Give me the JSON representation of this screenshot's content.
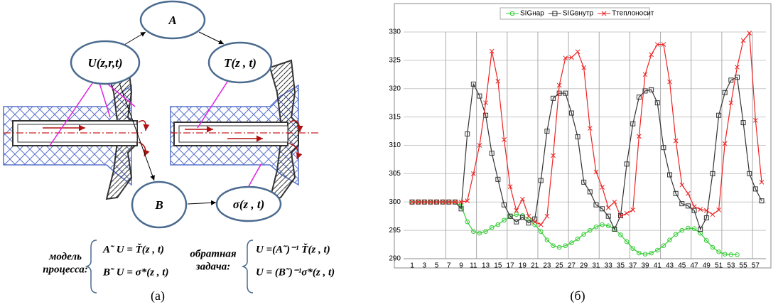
{
  "diagram": {
    "nodes": [
      {
        "label": "A"
      },
      {
        "label": "U(z,r,t)"
      },
      {
        "label": "T(z , t)"
      },
      {
        "label": "B"
      },
      {
        "label": "σ(z , t)"
      }
    ],
    "model_label": [
      "модель",
      "процесса:"
    ],
    "model_formulas": [
      "A˜ U = Ť(z , t)",
      "B˜ U = σ*(z , t)"
    ],
    "inverse_label": [
      "обратная",
      "задача:"
    ],
    "inverse_formulas": [
      "U =(A˜)⁻¹ Ť(z , t)",
      "U = (B˜)⁻¹σ*(z , t)"
    ]
  },
  "captions": [
    "(a)",
    "(б)"
  ],
  "chart_data": {
    "type": "line",
    "categories": [
      1,
      null,
      3,
      null,
      5,
      null,
      7,
      null,
      9,
      null,
      11,
      null,
      13,
      null,
      15,
      null,
      17,
      null,
      19,
      null,
      21,
      null,
      23,
      null,
      25,
      null,
      27,
      null,
      29,
      null,
      31,
      null,
      33,
      null,
      35,
      null,
      37,
      null,
      39,
      null,
      41,
      null,
      43,
      null,
      45,
      null,
      47,
      null,
      49,
      null,
      51,
      null,
      53,
      null,
      55,
      null,
      57,
      null
    ],
    "ylim": [
      290,
      330
    ],
    "yticks": [
      290,
      295,
      300,
      305,
      310,
      315,
      320,
      325,
      330
    ],
    "grid": true,
    "legend": "top",
    "series": [
      {
        "name": "SIGнар",
        "color": "#33cc33",
        "marker": "circle",
        "values": [
          300,
          300,
          300,
          300,
          300,
          300,
          300,
          300,
          299.3,
          296.5,
          294.8,
          294.5,
          294.8,
          295.5,
          296,
          296.8,
          297.4,
          297.8,
          297.6,
          297,
          296,
          294.8,
          293.3,
          292.3,
          292,
          292.3,
          292.8,
          293.5,
          294.3,
          295,
          295.6,
          296,
          295.8,
          295.3,
          294.2,
          293,
          291.8,
          291,
          290.8,
          291,
          291.5,
          292.3,
          293.3,
          294.3,
          295,
          295.4,
          295.3,
          294.5,
          293.2,
          292,
          291.2,
          290.8,
          290.7,
          290.7,
          null,
          null,
          null,
          null
        ]
      },
      {
        "name": "SIGвнутр",
        "color": "#333333",
        "marker": "square",
        "values": [
          300,
          300,
          300,
          300,
          300,
          300,
          300,
          300,
          298.8,
          312,
          320.8,
          318.7,
          315.3,
          308.6,
          304,
          299.5,
          297.5,
          296.5,
          297.3,
          296.3,
          297,
          303.8,
          312.5,
          318.3,
          319.2,
          319.2,
          315.7,
          311.5,
          303.5,
          301.8,
          299.5,
          298.8,
          297.5,
          295.2,
          297.6,
          306.7,
          313.8,
          318.5,
          319.6,
          319.8,
          317.5,
          309.6,
          304.8,
          301.5,
          299.7,
          299.3,
          298.5,
          295.2,
          297.2,
          305,
          315.3,
          319.3,
          321.5,
          322,
          314,
          305,
          302.3,
          300.2
        ]
      },
      {
        "name": "Tтеплоносит",
        "color": "#ee2222",
        "marker": "x",
        "values": [
          300,
          300,
          300,
          300,
          300,
          300,
          300,
          300,
          300,
          300.2,
          305,
          310,
          317.5,
          326.6,
          321.3,
          311,
          302.7,
          298.5,
          300.5,
          297.5,
          296.5,
          296,
          297.5,
          308.2,
          320.6,
          325.4,
          325.5,
          326.5,
          323.7,
          313,
          305.3,
          302.6,
          299,
          300,
          297.5,
          298,
          298.6,
          311.6,
          322.5,
          326,
          327.8,
          327.8,
          321.2,
          310.8,
          303,
          301.5,
          299.2,
          298.7,
          298.5,
          297.8,
          298.6,
          310.3,
          317.5,
          323.8,
          328.5,
          329.8,
          314.4,
          303.5
        ]
      }
    ]
  }
}
